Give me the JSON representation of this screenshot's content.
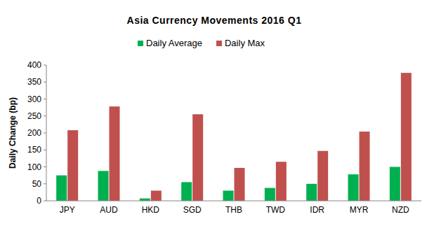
{
  "chart_data": {
    "type": "bar",
    "title": "Asia Currency Movements 2016 Q1",
    "y_label": "Daily Change (bp)",
    "categories": [
      "JPY",
      "AUD",
      "HKD",
      "SGD",
      "THB",
      "TWD",
      "IDR",
      "MYR",
      "NZD"
    ],
    "series": [
      {
        "name": "Daily Average",
        "color": "#00b050",
        "values": [
          75,
          88,
          7,
          55,
          30,
          38,
          50,
          78,
          100
        ]
      },
      {
        "name": "Daily Max",
        "color": "#c0504d",
        "values": [
          208,
          278,
          30,
          255,
          97,
          115,
          147,
          204,
          377
        ]
      }
    ],
    "ylim": [
      0,
      400
    ],
    "yticks": [
      0,
      50,
      100,
      150,
      200,
      250,
      300,
      350,
      400
    ],
    "grid": false,
    "legend": "top"
  }
}
